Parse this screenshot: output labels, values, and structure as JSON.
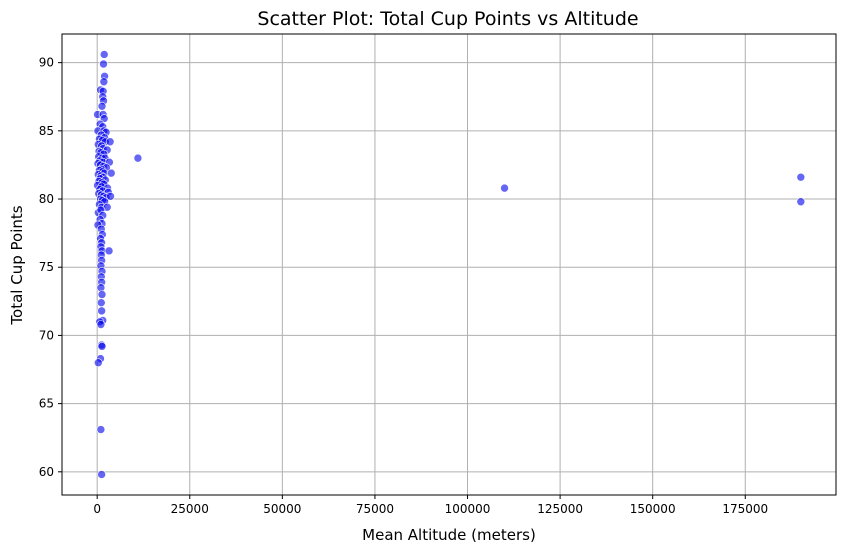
{
  "chart_data": {
    "type": "scatter",
    "title": "Scatter Plot: Total Cup Points vs Altitude",
    "xlabel": "Mean Altitude (meters)",
    "ylabel": "Total Cup Points",
    "xlim": [
      -9500,
      199500
    ],
    "ylim": [
      58.3,
      92.1
    ],
    "xticks": [
      0,
      25000,
      50000,
      75000,
      100000,
      125000,
      150000,
      175000
    ],
    "xtick_labels": [
      "0",
      "25000",
      "50000",
      "75000",
      "100000",
      "125000",
      "150000",
      "175000"
    ],
    "yticks": [
      60,
      65,
      70,
      75,
      80,
      85,
      90
    ],
    "ytick_labels": [
      "60",
      "65",
      "70",
      "75",
      "80",
      "85",
      "90"
    ],
    "grid": true,
    "point_color": "#0000ee",
    "point_opacity": 0.6,
    "series": [
      {
        "points": [
          [
            1900,
            90.6
          ],
          [
            1700,
            89.9
          ],
          [
            2000,
            89.0
          ],
          [
            1800,
            88.6
          ],
          [
            900,
            88.0
          ],
          [
            1600,
            87.9
          ],
          [
            1500,
            87.5
          ],
          [
            1700,
            87.2
          ],
          [
            1300,
            86.8
          ],
          [
            100,
            86.2
          ],
          [
            1600,
            86.2
          ],
          [
            1900,
            85.9
          ],
          [
            800,
            85.5
          ],
          [
            1500,
            85.3
          ],
          [
            200,
            85.0
          ],
          [
            1800,
            85.0
          ],
          [
            2400,
            84.9
          ],
          [
            1100,
            84.7
          ],
          [
            2000,
            84.5
          ],
          [
            600,
            84.4
          ],
          [
            1400,
            84.3
          ],
          [
            2200,
            84.2
          ],
          [
            3500,
            84.2
          ],
          [
            300,
            84.0
          ],
          [
            1200,
            83.9
          ],
          [
            1600,
            83.7
          ],
          [
            2700,
            83.6
          ],
          [
            500,
            83.5
          ],
          [
            1000,
            83.4
          ],
          [
            1800,
            83.3
          ],
          [
            400,
            83.1
          ],
          [
            1300,
            83.0
          ],
          [
            2100,
            83.0
          ],
          [
            11000,
            83.0
          ],
          [
            700,
            82.8
          ],
          [
            1500,
            82.7
          ],
          [
            3300,
            82.7
          ],
          [
            200,
            82.6
          ],
          [
            900,
            82.5
          ],
          [
            1700,
            82.4
          ],
          [
            2500,
            82.3
          ],
          [
            1100,
            82.2
          ],
          [
            600,
            82.1
          ],
          [
            1400,
            82.0
          ],
          [
            1900,
            81.9
          ],
          [
            3800,
            81.9
          ],
          [
            300,
            81.8
          ],
          [
            1000,
            81.7
          ],
          [
            1600,
            81.6
          ],
          [
            800,
            81.5
          ],
          [
            2200,
            81.4
          ],
          [
            500,
            81.3
          ],
          [
            1300,
            81.2
          ],
          [
            1800,
            81.1
          ],
          [
            100,
            81.0
          ],
          [
            1200,
            80.9
          ],
          [
            2800,
            80.8
          ],
          [
            110000,
            80.8
          ],
          [
            700,
            80.7
          ],
          [
            1500,
            80.6
          ],
          [
            3000,
            80.5
          ],
          [
            400,
            80.4
          ],
          [
            1100,
            80.3
          ],
          [
            1700,
            80.2
          ],
          [
            2400,
            80.1
          ],
          [
            3600,
            80.2
          ],
          [
            900,
            80.0
          ],
          [
            1400,
            79.9
          ],
          [
            2000,
            79.8
          ],
          [
            600,
            79.6
          ],
          [
            1200,
            79.4
          ],
          [
            2700,
            79.4
          ],
          [
            300,
            79.0
          ],
          [
            1000,
            79.2
          ],
          [
            1500,
            78.8
          ],
          [
            800,
            78.5
          ],
          [
            1300,
            78.2
          ],
          [
            200,
            78.1
          ],
          [
            1100,
            77.8
          ],
          [
            1400,
            77.4
          ],
          [
            900,
            77.1
          ],
          [
            1200,
            76.8
          ],
          [
            1000,
            76.5
          ],
          [
            1300,
            76.2
          ],
          [
            3200,
            76.2
          ],
          [
            1100,
            75.9
          ],
          [
            1200,
            75.5
          ],
          [
            1000,
            75.1
          ],
          [
            1300,
            74.7
          ],
          [
            1100,
            74.3
          ],
          [
            1200,
            73.9
          ],
          [
            1000,
            73.5
          ],
          [
            1300,
            73.0
          ],
          [
            1100,
            72.4
          ],
          [
            1200,
            71.8
          ],
          [
            1500,
            71.1
          ],
          [
            700,
            71.0
          ],
          [
            1000,
            70.8
          ],
          [
            1200,
            69.3
          ],
          [
            1300,
            69.2
          ],
          [
            900,
            68.3
          ],
          [
            300,
            68.0
          ],
          [
            1000,
            63.1
          ],
          [
            1200,
            59.8
          ],
          [
            190000,
            81.6
          ],
          [
            190000,
            79.8
          ]
        ]
      }
    ]
  }
}
